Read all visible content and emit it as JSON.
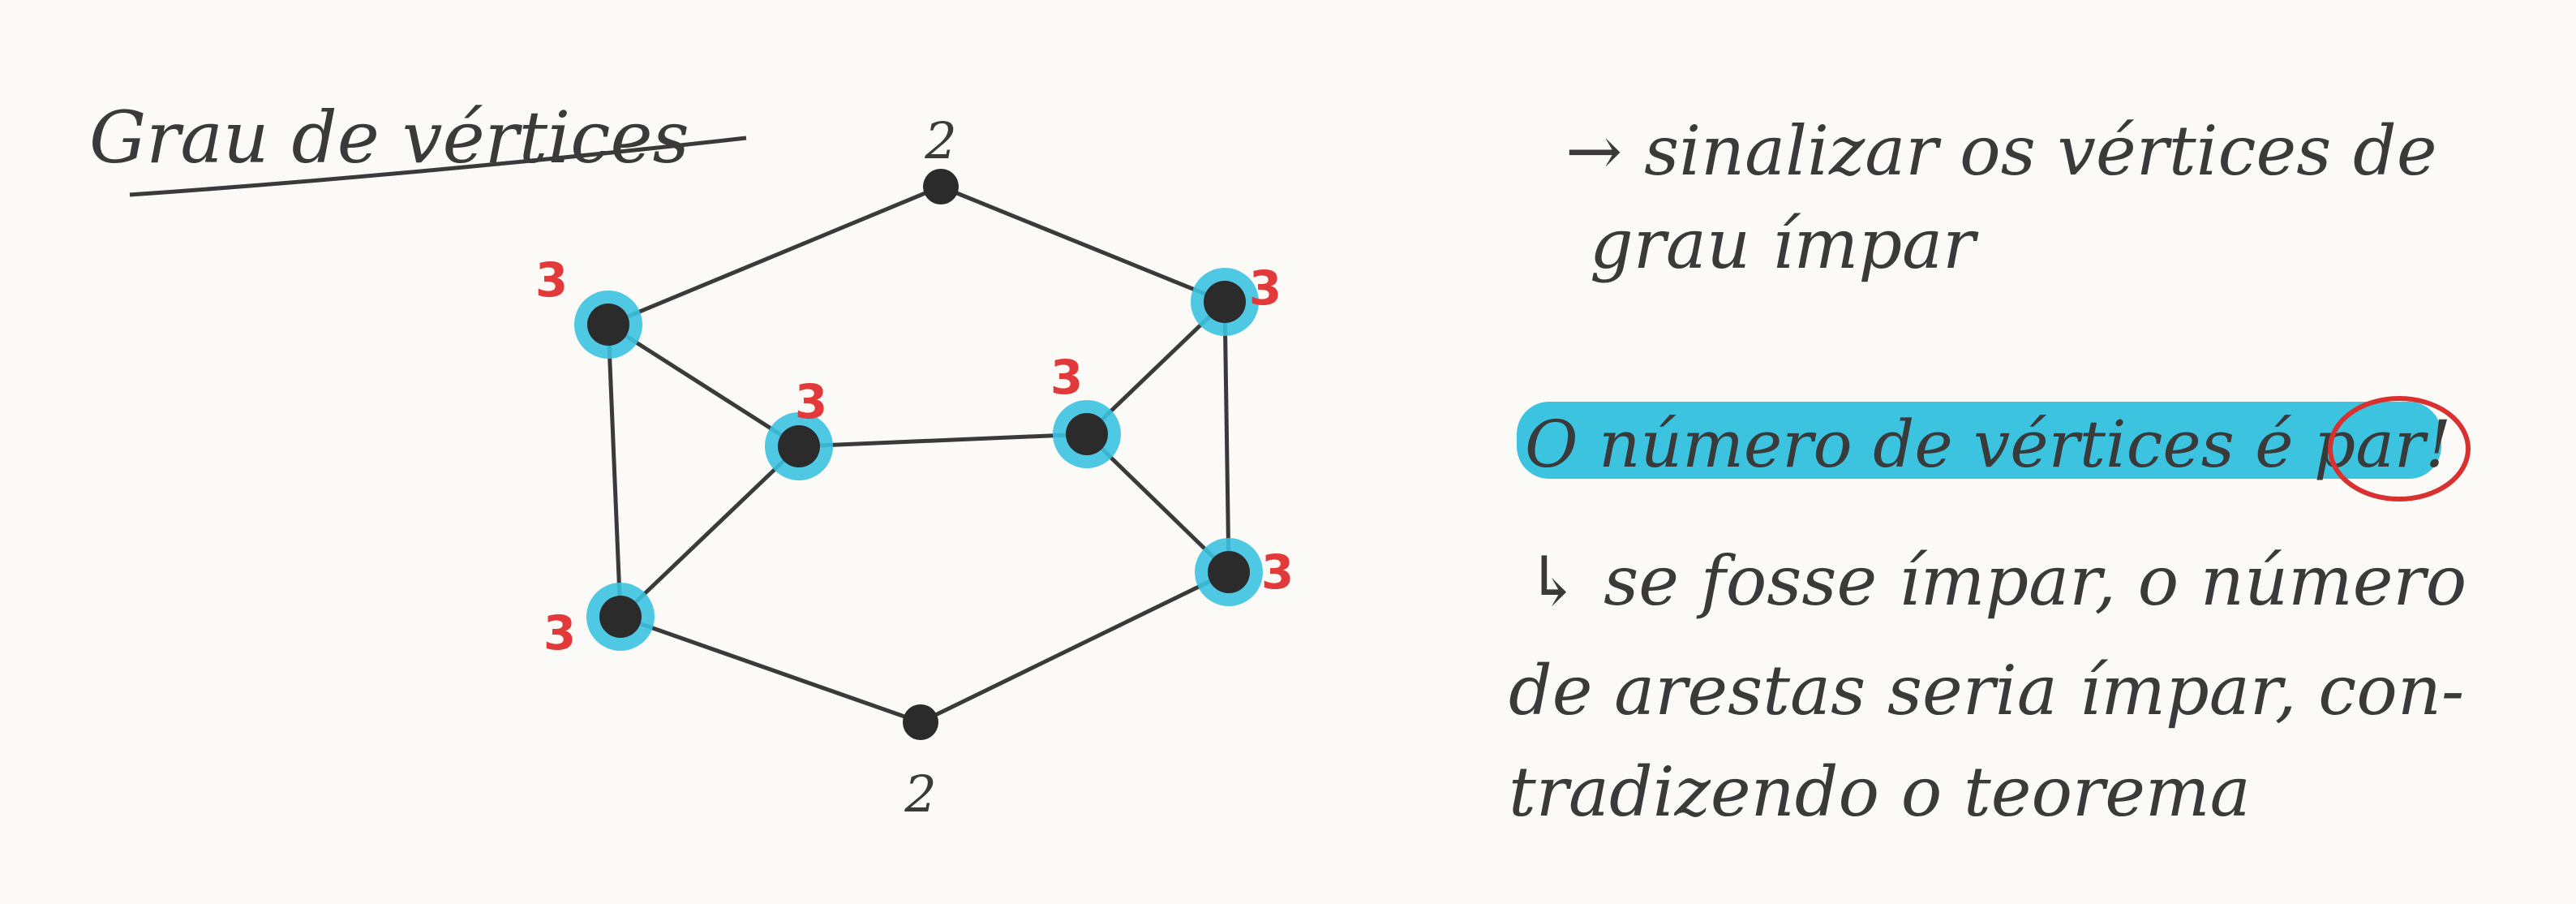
{
  "title": "Grau de vértices",
  "notes": {
    "line1": "→ sinalizar os vértices de",
    "line2": "grau ímpar",
    "highlight_prefix": "O número de vértices é ",
    "highlight_word": "par",
    "highlight_suffix": "!",
    "reason1": "↳ se fosse ímpar, o número",
    "reason2": "de arestas seria ímpar, con-",
    "reason3": "tradizendo o teorema"
  },
  "graph": {
    "vertices": [
      {
        "id": "top",
        "degree": "2",
        "odd": false
      },
      {
        "id": "upper-left",
        "degree": "3",
        "odd": true
      },
      {
        "id": "upper-right",
        "degree": "3",
        "odd": true
      },
      {
        "id": "inner-left",
        "degree": "3",
        "odd": true
      },
      {
        "id": "inner-right",
        "degree": "3",
        "odd": true
      },
      {
        "id": "lower-left",
        "degree": "3",
        "odd": true
      },
      {
        "id": "lower-right",
        "degree": "3",
        "odd": true
      },
      {
        "id": "bottom",
        "degree": "2",
        "odd": false
      }
    ],
    "edges": [
      [
        "top",
        "upper-left"
      ],
      [
        "top",
        "upper-right"
      ],
      [
        "upper-left",
        "lower-left"
      ],
      [
        "upper-left",
        "inner-left"
      ],
      [
        "upper-right",
        "lower-right"
      ],
      [
        "upper-right",
        "inner-right"
      ],
      [
        "inner-left",
        "inner-right"
      ],
      [
        "inner-left",
        "lower-left"
      ],
      [
        "inner-right",
        "lower-right"
      ],
      [
        "lower-left",
        "bottom"
      ],
      [
        "lower-right",
        "bottom"
      ]
    ],
    "colors": {
      "vertex": "#2b2b2b",
      "edge": "#3a3a3a",
      "highlight": "#3cc3e0",
      "odd_label": "#e23a3a",
      "even_label": "#3a3a3a"
    }
  }
}
